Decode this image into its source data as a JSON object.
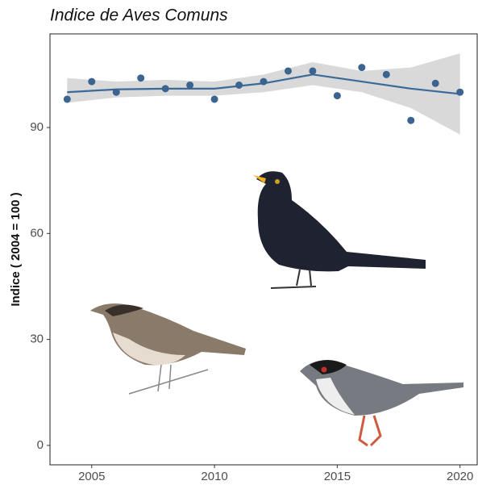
{
  "chart_data": {
    "type": "scatter",
    "title": "Indice de Aves Comuns",
    "y_label": "Indice ( 2004 = 100 )",
    "x": [
      2004,
      2005,
      2006,
      2007,
      2008,
      2009,
      2010,
      2011,
      2012,
      2013,
      2014,
      2015,
      2016,
      2017,
      2018,
      2019,
      2020
    ],
    "values": [
      98,
      103,
      100,
      104,
      101,
      102,
      98,
      102,
      103,
      106,
      106,
      99,
      107,
      105,
      92,
      102.5,
      100
    ],
    "color": "#3b6590",
    "smooth": {
      "x": [
        2004,
        2006,
        2008,
        2010,
        2012,
        2014,
        2016,
        2018,
        2020
      ],
      "values": [
        100,
        100.8,
        101,
        101,
        102.5,
        105,
        103,
        101,
        99.5
      ],
      "lower": [
        97,
        98.5,
        99,
        99,
        100,
        102,
        100,
        95.5,
        88
      ],
      "upper": [
        104,
        103,
        103.5,
        103,
        105,
        108.5,
        106,
        107,
        111
      ],
      "color": "#3b6a9a",
      "band_color": "#d9d9d9"
    },
    "xlim": [
      2003.3,
      2020.7
    ],
    "ylim": [
      -5.5,
      116.5
    ],
    "xticks": [
      2005,
      2010,
      2015,
      2020
    ],
    "yticks": [
      0,
      30,
      60,
      90
    ],
    "grid": false
  }
}
